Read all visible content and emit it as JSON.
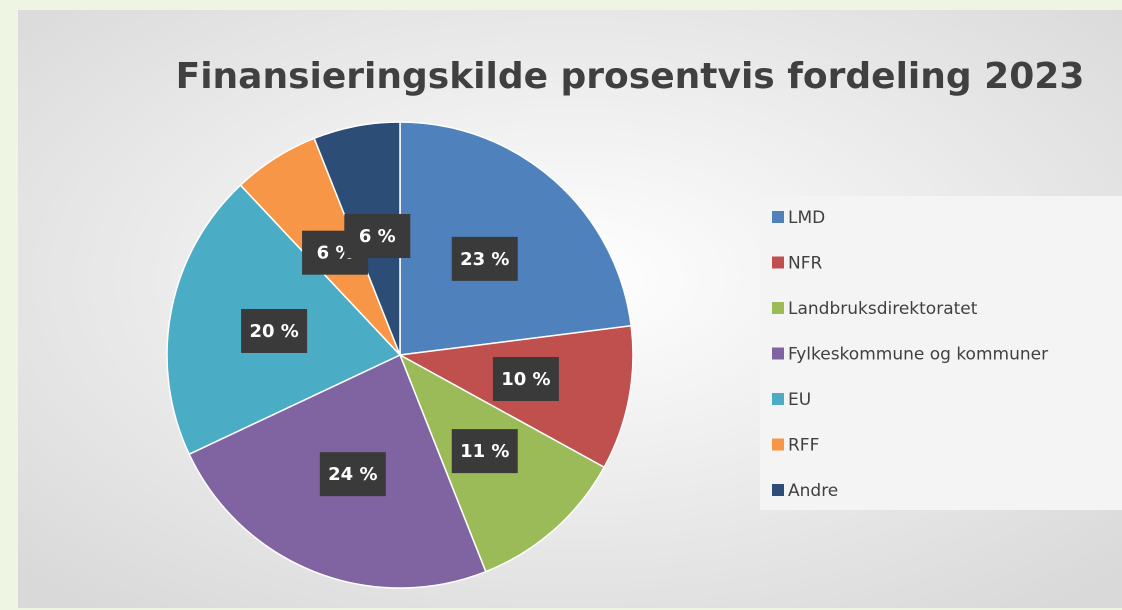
{
  "chart_data": {
    "type": "pie",
    "title": "Finansieringskilde prosentvis fordeling 2023",
    "categories": [
      "LMD",
      "NFR",
      "Landbruksdirektoratet",
      "Fylkeskommune og kommuner",
      "EU",
      "RFF",
      "Andre"
    ],
    "values": [
      23,
      10,
      11,
      24,
      20,
      6,
      6
    ],
    "value_labels": [
      "23 %",
      "10 %",
      "11 %",
      "24 %",
      "20 %",
      "6 %",
      "6 %"
    ],
    "colors": [
      "#4f81bd",
      "#c0504d",
      "#9bbb59",
      "#8064a2",
      "#4bacc6",
      "#f79646",
      "#2c4d75"
    ],
    "legend": "right"
  }
}
